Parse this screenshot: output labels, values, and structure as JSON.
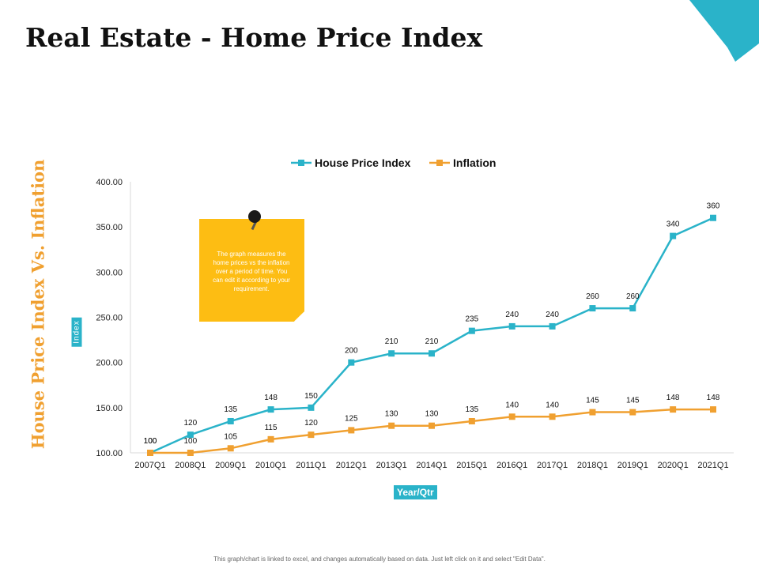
{
  "page": {
    "title": "Real Estate - Home Price Index",
    "side_title": "House Price Index Vs. Inflation",
    "y_badge": "Index",
    "x_badge": "Year/Qtr",
    "note_text": "The graph measures the home prices vs the inflation over a period of time. You can edit it according to your requirement.",
    "footnote": "This graph/chart is linked to excel, and changes automatically based on data. Just left click on it and select \"Edit Data\"."
  },
  "colors": {
    "accent": "#2ab3c9",
    "orange": "#f0a030",
    "note": "#fdbd13"
  },
  "chart_data": {
    "type": "line",
    "categories": [
      "2007Q1",
      "2008Q1",
      "2009Q1",
      "2010Q1",
      "2011Q1",
      "2012Q1",
      "2013Q1",
      "2014Q1",
      "2015Q1",
      "2016Q1",
      "2017Q1",
      "2018Q1",
      "2019Q1",
      "2020Q1",
      "2021Q1"
    ],
    "series": [
      {
        "name": "House Price Index",
        "color": "#2ab3c9",
        "values": [
          100,
          120,
          135,
          148,
          150,
          200,
          210,
          210,
          235,
          240,
          240,
          260,
          260,
          340,
          360
        ]
      },
      {
        "name": "Inflation",
        "color": "#f0a030",
        "values": [
          100,
          100,
          105,
          115,
          120,
          125,
          130,
          130,
          135,
          140,
          140,
          145,
          145,
          148,
          148
        ]
      }
    ],
    "yticks": [
      "100.00",
      "150.00",
      "200.00",
      "250.00",
      "300.00",
      "350.00",
      "400.00"
    ],
    "ylim": [
      100,
      400
    ],
    "legend": "top"
  }
}
